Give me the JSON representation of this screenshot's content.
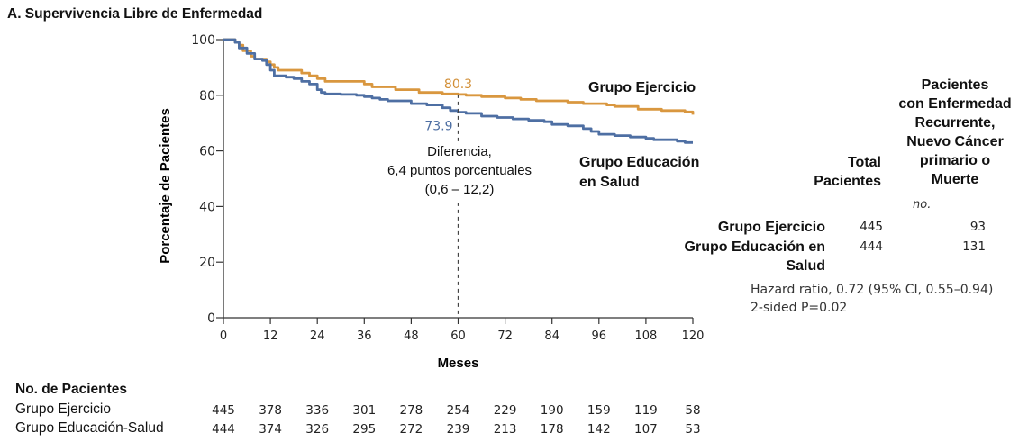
{
  "title": "A. Supervivencia Libre de Enfermedad",
  "chart_data": {
    "type": "line",
    "subtype": "kaplan-meier",
    "title": "A. Supervivencia Libre de Enfermedad",
    "xlabel": "Meses",
    "ylabel": "Porcentaje de Pacientes",
    "xlim": [
      0,
      120
    ],
    "ylim": [
      0,
      100
    ],
    "x_ticks": [
      "0",
      "12",
      "24",
      "36",
      "48",
      "60",
      "72",
      "84",
      "96",
      "108",
      "120"
    ],
    "y_ticks": [
      "0",
      "20",
      "40",
      "60",
      "80",
      "100"
    ],
    "grid": false,
    "colors": {
      "exercise": "#d9973f",
      "education": "#4e6fa3"
    },
    "series": [
      {
        "name": "Grupo Ejercicio",
        "key": "exercise",
        "points": [
          [
            0,
            100
          ],
          [
            2,
            100
          ],
          [
            3,
            99
          ],
          [
            4,
            98
          ],
          [
            5,
            96
          ],
          [
            7,
            94
          ],
          [
            8,
            93
          ],
          [
            10,
            93
          ],
          [
            11,
            92
          ],
          [
            12,
            91
          ],
          [
            13,
            90
          ],
          [
            14,
            89
          ],
          [
            18,
            89
          ],
          [
            20,
            88
          ],
          [
            22,
            87
          ],
          [
            24,
            86
          ],
          [
            26,
            85
          ],
          [
            30,
            85
          ],
          [
            34,
            85
          ],
          [
            36,
            84
          ],
          [
            38,
            83
          ],
          [
            42,
            83
          ],
          [
            44,
            82
          ],
          [
            48,
            82
          ],
          [
            50,
            81
          ],
          [
            54,
            81
          ],
          [
            56,
            80.5
          ],
          [
            60,
            80.3
          ],
          [
            62,
            80
          ],
          [
            66,
            79.5
          ],
          [
            72,
            79
          ],
          [
            76,
            78.5
          ],
          [
            80,
            78
          ],
          [
            84,
            78
          ],
          [
            88,
            77.5
          ],
          [
            92,
            77
          ],
          [
            96,
            77
          ],
          [
            98,
            76.5
          ],
          [
            100,
            76
          ],
          [
            104,
            76
          ],
          [
            106,
            75
          ],
          [
            110,
            75
          ],
          [
            112,
            74.5
          ],
          [
            116,
            74.5
          ],
          [
            118,
            74
          ],
          [
            119.5,
            74
          ],
          [
            120,
            73
          ]
        ]
      },
      {
        "name": "Grupo Educación en Salud",
        "key": "education",
        "points": [
          [
            0,
            100
          ],
          [
            2,
            100
          ],
          [
            3,
            99
          ],
          [
            4,
            97
          ],
          [
            6,
            95
          ],
          [
            8,
            93
          ],
          [
            10,
            92.5
          ],
          [
            11,
            91
          ],
          [
            12,
            89
          ],
          [
            13,
            87
          ],
          [
            16,
            86.5
          ],
          [
            18,
            86
          ],
          [
            20,
            85
          ],
          [
            22,
            84
          ],
          [
            24,
            82
          ],
          [
            25,
            81
          ],
          [
            26,
            80.5
          ],
          [
            30,
            80.3
          ],
          [
            34,
            80
          ],
          [
            36,
            79.5
          ],
          [
            38,
            79
          ],
          [
            40,
            78.5
          ],
          [
            42,
            78
          ],
          [
            46,
            78
          ],
          [
            48,
            77
          ],
          [
            52,
            76.5
          ],
          [
            56,
            75.5
          ],
          [
            58,
            74.5
          ],
          [
            60,
            73.9
          ],
          [
            62,
            73.5
          ],
          [
            66,
            72.5
          ],
          [
            70,
            72
          ],
          [
            74,
            71.5
          ],
          [
            78,
            71
          ],
          [
            82,
            70.5
          ],
          [
            84,
            69.5
          ],
          [
            88,
            69
          ],
          [
            92,
            68
          ],
          [
            94,
            67
          ],
          [
            96,
            66
          ],
          [
            100,
            65.5
          ],
          [
            104,
            65
          ],
          [
            108,
            64.5
          ],
          [
            110,
            64
          ],
          [
            114,
            64
          ],
          [
            116,
            63.5
          ],
          [
            118,
            63
          ],
          [
            120,
            63
          ]
        ]
      }
    ],
    "annotations": {
      "exercise_at_60": "80.3",
      "education_at_60": "73.9",
      "reference_month": 60,
      "difference_lines": [
        "Diferencia,",
        "6,4 puntos porcentuales",
        "(0,6 – 12,2)"
      ]
    },
    "legend": {
      "exercise_label": "Grupo Ejercicio",
      "education_label_lines": [
        "Grupo Educación",
        "en Salud"
      ],
      "placement": "inline-right"
    }
  },
  "summary_table": {
    "header_total_lines": [
      "Total",
      "Pacientes"
    ],
    "header_events_lines": [
      "Pacientes",
      "con Enfermedad",
      "Recurrente,",
      "Nuevo Cáncer",
      "primario o",
      "Muerte"
    ],
    "unit": "no.",
    "rows": [
      {
        "name_lines": [
          "Grupo Ejercicio"
        ],
        "total": "445",
        "events": "93"
      },
      {
        "name_lines": [
          "Grupo Educación en",
          "Salud"
        ],
        "total": "444",
        "events": "131"
      }
    ],
    "hazard_ratio": "Hazard ratio, 0.72 (95% CI, 0.55–0.94)",
    "p_value": "2-sided P=0.02"
  },
  "risk_table": {
    "title": "No. de Pacientes",
    "rows": [
      {
        "name": "Grupo Ejercicio",
        "values": [
          "445",
          "378",
          "336",
          "301",
          "278",
          "254",
          "229",
          "190",
          "159",
          "119",
          "58"
        ]
      },
      {
        "name": "Grupo Educación-Salud",
        "values": [
          "444",
          "374",
          "326",
          "295",
          "272",
          "239",
          "213",
          "178",
          "142",
          "107",
          "53"
        ]
      }
    ]
  }
}
